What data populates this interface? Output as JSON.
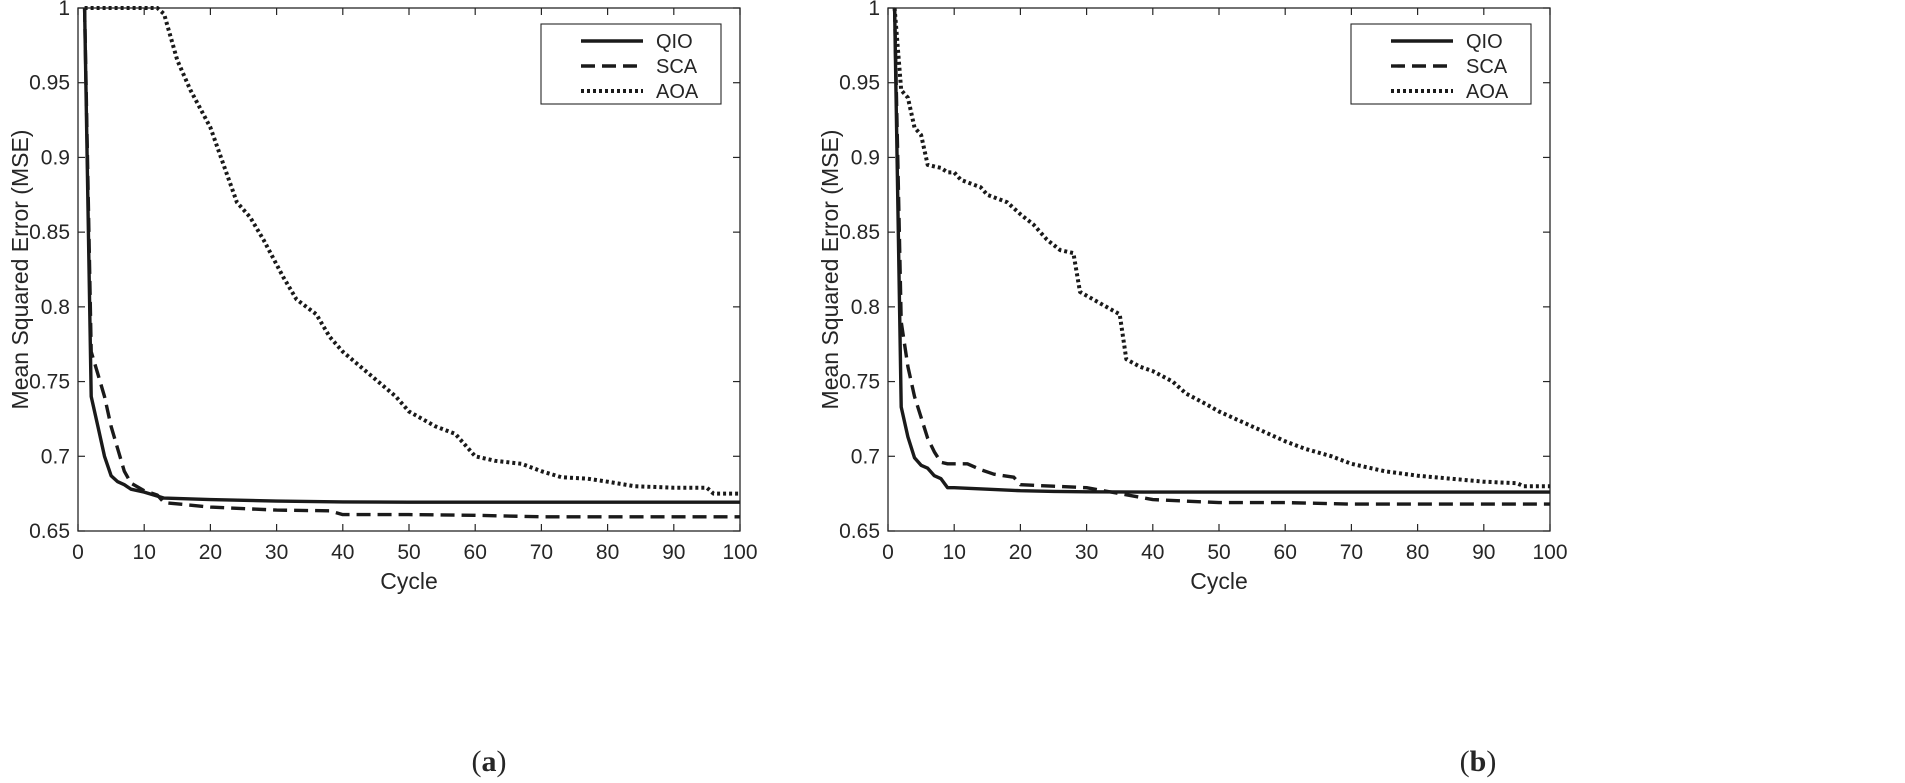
{
  "figure": {
    "panels": [
      {
        "label_open": "(",
        "label_letter": "a",
        "label_close": ")"
      },
      {
        "label_open": "(",
        "label_letter": "b",
        "label_close": ")"
      }
    ]
  },
  "chart_data": [
    {
      "type": "line",
      "panel": "a",
      "title": "",
      "xlabel": "Cycle",
      "ylabel": "Mean Squared Error (MSE)",
      "xlim": [
        0,
        100
      ],
      "ylim": [
        0.65,
        1
      ],
      "xticks": [
        0,
        10,
        20,
        30,
        40,
        50,
        60,
        70,
        80,
        90,
        100
      ],
      "yticks": [
        0.65,
        0.7,
        0.75,
        0.8,
        0.85,
        0.9,
        0.95,
        1
      ],
      "ytick_labels": [
        "0.65",
        "0.7",
        "0.75",
        "0.8",
        "0.85",
        "0.9",
        "0.95",
        "1"
      ],
      "grid": false,
      "legend_position": "top-right",
      "series": [
        {
          "name": "QIO",
          "style": "solid",
          "x": [
            1,
            2,
            3,
            4,
            5,
            6,
            7,
            8,
            10,
            13,
            20,
            30,
            40,
            50,
            60,
            70,
            80,
            90,
            100
          ],
          "y": [
            1.0,
            0.74,
            0.72,
            0.7,
            0.687,
            0.683,
            0.681,
            0.678,
            0.676,
            0.672,
            0.671,
            0.67,
            0.6695,
            0.6693,
            0.6693,
            0.6693,
            0.6693,
            0.6693,
            0.6693
          ]
        },
        {
          "name": "SCA",
          "style": "dashed",
          "x": [
            1,
            2,
            3,
            4,
            5,
            6,
            7,
            8,
            10,
            12,
            13,
            20,
            30,
            38,
            40,
            50,
            60,
            70,
            80,
            90,
            100
          ],
          "y": [
            1.0,
            0.77,
            0.755,
            0.74,
            0.72,
            0.705,
            0.69,
            0.682,
            0.677,
            0.674,
            0.669,
            0.666,
            0.664,
            0.6635,
            0.661,
            0.661,
            0.6605,
            0.6595,
            0.6595,
            0.6595,
            0.6595
          ]
        },
        {
          "name": "AOA",
          "style": "dotted",
          "x": [
            1,
            12,
            13,
            15,
            17,
            20,
            22,
            24,
            26,
            28,
            31,
            33,
            36,
            38,
            40,
            44,
            48,
            50,
            54,
            57,
            60,
            63,
            67,
            70,
            73,
            77,
            80,
            84,
            90,
            95,
            96,
            100
          ],
          "y": [
            1.0,
            1.0,
            0.996,
            0.965,
            0.945,
            0.92,
            0.895,
            0.87,
            0.86,
            0.845,
            0.82,
            0.805,
            0.795,
            0.78,
            0.77,
            0.755,
            0.74,
            0.73,
            0.72,
            0.715,
            0.7,
            0.697,
            0.695,
            0.69,
            0.686,
            0.685,
            0.683,
            0.68,
            0.679,
            0.679,
            0.675,
            0.675
          ]
        }
      ]
    },
    {
      "type": "line",
      "panel": "b",
      "title": "",
      "xlabel": "Cycle",
      "ylabel": "Mean Squared Error (MSE)",
      "xlim": [
        0,
        100
      ],
      "ylim": [
        0.65,
        1
      ],
      "xticks": [
        0,
        10,
        20,
        30,
        40,
        50,
        60,
        70,
        80,
        90,
        100
      ],
      "yticks": [
        0.65,
        0.7,
        0.75,
        0.8,
        0.85,
        0.9,
        0.95,
        1
      ],
      "ytick_labels": [
        "0.65",
        "0.7",
        "0.75",
        "0.8",
        "0.85",
        "0.9",
        "0.95",
        "1"
      ],
      "grid": false,
      "legend_position": "top-right",
      "series": [
        {
          "name": "QIO",
          "style": "solid",
          "x": [
            1,
            2,
            3,
            4,
            5,
            6,
            7,
            8,
            9,
            10,
            15,
            20,
            25,
            30,
            40,
            50,
            60,
            70,
            80,
            90,
            100
          ],
          "y": [
            1.0,
            0.733,
            0.713,
            0.699,
            0.694,
            0.692,
            0.687,
            0.685,
            0.679,
            0.679,
            0.678,
            0.677,
            0.6765,
            0.6762,
            0.676,
            0.676,
            0.676,
            0.676,
            0.676,
            0.676,
            0.676
          ]
        },
        {
          "name": "SCA",
          "style": "dashed",
          "x": [
            1,
            2,
            3,
            4,
            5,
            6,
            7,
            8,
            9,
            12,
            14,
            16,
            19,
            20,
            25,
            30,
            35,
            40,
            45,
            50,
            60,
            70,
            80,
            90,
            100
          ],
          "y": [
            1.0,
            0.79,
            0.76,
            0.74,
            0.726,
            0.712,
            0.703,
            0.696,
            0.695,
            0.695,
            0.691,
            0.688,
            0.686,
            0.681,
            0.68,
            0.679,
            0.675,
            0.671,
            0.67,
            0.669,
            0.669,
            0.668,
            0.668,
            0.668,
            0.668
          ]
        },
        {
          "name": "AOA",
          "style": "dotted",
          "x": [
            1,
            2,
            3,
            4,
            5,
            6,
            7,
            8,
            9,
            10,
            11,
            14,
            15,
            18,
            20,
            22,
            24,
            26,
            28,
            29,
            31,
            33,
            35,
            36,
            38,
            40,
            43,
            45,
            48,
            50,
            55,
            60,
            63,
            67,
            70,
            75,
            80,
            85,
            90,
            95,
            96,
            100
          ],
          "y": [
            1.0,
            0.945,
            0.94,
            0.92,
            0.915,
            0.895,
            0.894,
            0.893,
            0.89,
            0.89,
            0.885,
            0.88,
            0.875,
            0.87,
            0.862,
            0.855,
            0.845,
            0.838,
            0.836,
            0.81,
            0.805,
            0.8,
            0.795,
            0.765,
            0.76,
            0.757,
            0.75,
            0.742,
            0.735,
            0.73,
            0.72,
            0.71,
            0.705,
            0.7,
            0.695,
            0.69,
            0.687,
            0.685,
            0.683,
            0.682,
            0.68,
            0.68
          ]
        }
      ]
    }
  ]
}
